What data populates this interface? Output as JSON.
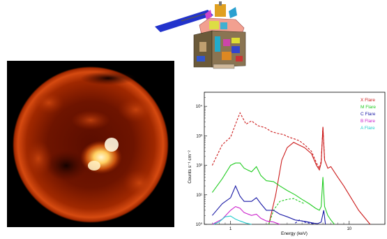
{
  "satellite_image": {
    "icon": "satellite-icon"
  },
  "sun_image": {
    "icon": "sun-xray-image"
  },
  "chart_data": {
    "type": "line",
    "title": "",
    "xlabel": "Energy (keV)",
    "ylabel": "Counts s⁻¹ cm⁻²",
    "xscale": "log",
    "yscale": "log",
    "xlim": [
      0.6,
      20
    ],
    "ylim": [
      1,
      30000
    ],
    "x_ticks": [
      {
        "value": 1,
        "label": "1"
      },
      {
        "value": 10,
        "label": "10"
      }
    ],
    "y_ticks": [
      {
        "value": 1,
        "label": "10⁰"
      },
      {
        "value": 10,
        "label": "10¹"
      },
      {
        "value": 100,
        "label": "10²"
      },
      {
        "value": 1000,
        "label": "10³"
      },
      {
        "value": 10000,
        "label": "10⁴"
      }
    ],
    "legend_position": "top-right",
    "series": [
      {
        "name": "X Flare",
        "color": "#cc1a1a",
        "solid": [
          [
            2.1,
            1
          ],
          [
            2.4,
            10
          ],
          [
            2.7,
            150
          ],
          [
            3,
            400
          ],
          [
            3.4,
            600
          ],
          [
            3.8,
            480
          ],
          [
            4.2,
            400
          ],
          [
            4.8,
            250
          ],
          [
            5.3,
            100
          ],
          [
            5.6,
            70
          ],
          [
            5.8,
            120
          ],
          [
            6,
            2000
          ],
          [
            6.2,
            150
          ],
          [
            6.6,
            80
          ],
          [
            7,
            90
          ],
          [
            8,
            40
          ],
          [
            9,
            20
          ],
          [
            10,
            10
          ],
          [
            12,
            3
          ],
          [
            15,
            1
          ]
        ],
        "dashed": [
          [
            0.7,
            100
          ],
          [
            0.85,
            500
          ],
          [
            1,
            900
          ],
          [
            1.12,
            3000
          ],
          [
            1.2,
            6000
          ],
          [
            1.35,
            2500
          ],
          [
            1.5,
            3200
          ],
          [
            1.7,
            2200
          ],
          [
            1.95,
            1900
          ],
          [
            2.2,
            1400
          ],
          [
            2.5,
            1200
          ],
          [
            2.8,
            1100
          ],
          [
            3.1,
            900
          ],
          [
            3.4,
            800
          ],
          [
            3.8,
            680
          ],
          [
            4.2,
            500
          ],
          [
            4.8,
            300
          ],
          [
            5.3,
            120
          ],
          [
            5.6,
            80
          ],
          [
            5.8,
            140
          ],
          [
            6,
            2000
          ],
          [
            6.2,
            160
          ]
        ]
      },
      {
        "name": "M Flare",
        "color": "#22cc22",
        "solid": [
          [
            0.7,
            12
          ],
          [
            0.85,
            35
          ],
          [
            1,
            100
          ],
          [
            1.1,
            120
          ],
          [
            1.2,
            120
          ],
          [
            1.3,
            80
          ],
          [
            1.5,
            60
          ],
          [
            1.65,
            90
          ],
          [
            1.8,
            45
          ],
          [
            2,
            30
          ],
          [
            2.3,
            28
          ],
          [
            2.6,
            20
          ],
          [
            3,
            14
          ],
          [
            3.5,
            10
          ],
          [
            4,
            7
          ],
          [
            4.6,
            5
          ],
          [
            5.2,
            3.5
          ],
          [
            5.6,
            3
          ],
          [
            5.8,
            4
          ],
          [
            6,
            40
          ],
          [
            6.2,
            4
          ],
          [
            6.6,
            2
          ],
          [
            7,
            1.4
          ],
          [
            7.5,
            1
          ]
        ],
        "dashed": [
          [
            2.1,
            1
          ],
          [
            2.3,
            3
          ],
          [
            2.6,
            6
          ],
          [
            3,
            7
          ],
          [
            3.4,
            7.5
          ],
          [
            3.8,
            6
          ],
          [
            4.2,
            5
          ]
        ]
      },
      {
        "name": "C Flare",
        "color": "#1a1aa6",
        "solid": [
          [
            0.7,
            2
          ],
          [
            0.85,
            5
          ],
          [
            1,
            8
          ],
          [
            1.1,
            20
          ],
          [
            1.2,
            9
          ],
          [
            1.3,
            6
          ],
          [
            1.5,
            6
          ],
          [
            1.65,
            8
          ],
          [
            1.8,
            5
          ],
          [
            2,
            3
          ],
          [
            2.3,
            3
          ],
          [
            2.6,
            2.2
          ],
          [
            3,
            1.8
          ],
          [
            3.5,
            1.4
          ],
          [
            4,
            1.3
          ],
          [
            4.5,
            1.2
          ],
          [
            5,
            1.1
          ],
          [
            5.4,
            1.05
          ],
          [
            5.8,
            1.2
          ],
          [
            6.1,
            3
          ],
          [
            6.3,
            1
          ]
        ],
        "dashed": [
          [
            3.5,
            1.1
          ],
          [
            3.8,
            1.4
          ],
          [
            4.2,
            1.2
          ],
          [
            4.6,
            1.1
          ],
          [
            5,
            1.05
          ]
        ]
      },
      {
        "name": "B Flare",
        "color": "#cc22cc",
        "solid": [
          [
            0.7,
            1
          ],
          [
            0.85,
            1.5
          ],
          [
            1,
            3
          ],
          [
            1.1,
            4
          ],
          [
            1.2,
            3.5
          ],
          [
            1.3,
            2.5
          ],
          [
            1.5,
            2
          ],
          [
            1.65,
            2.2
          ],
          [
            1.8,
            1.6
          ],
          [
            2,
            1.3
          ],
          [
            2.3,
            1.2
          ],
          [
            2.6,
            1
          ]
        ]
      },
      {
        "name": "A Flare",
        "color": "#22cccc",
        "solid": [
          [
            0.72,
            1
          ],
          [
            0.8,
            1.2
          ],
          [
            0.9,
            1.8
          ],
          [
            1,
            1.9
          ],
          [
            1.1,
            1.5
          ],
          [
            1.2,
            1.3
          ],
          [
            1.35,
            1.1
          ],
          [
            1.5,
            1
          ]
        ]
      }
    ]
  }
}
